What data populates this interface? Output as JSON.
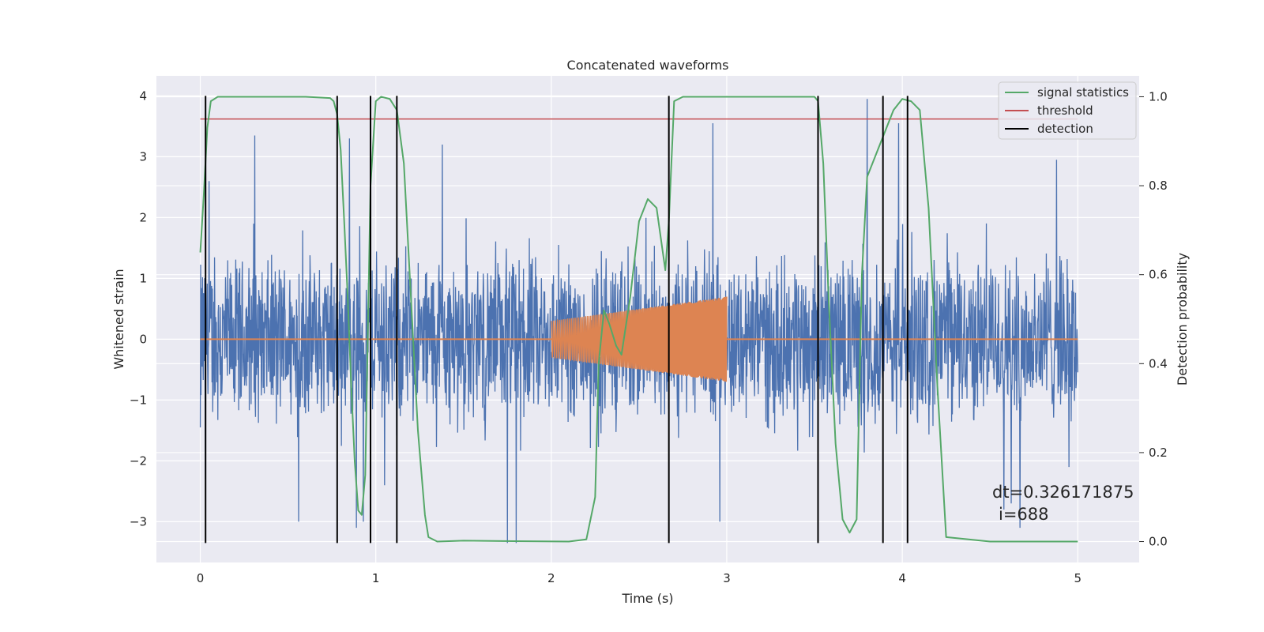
{
  "chart_data": {
    "type": "line",
    "title": "Concatenated waveforms",
    "xlabel": "Time (s)",
    "ylabel": "Whitened strain",
    "y2label": "Detection probability",
    "xlim": [
      -0.25,
      5.35
    ],
    "ylim": [
      -3.67,
      4.33
    ],
    "y2lim": [
      -0.047,
      1.047
    ],
    "x_ticks": [
      0,
      1,
      2,
      3,
      4,
      5
    ],
    "y_ticks": [
      -3,
      -2,
      -1,
      0,
      1,
      2,
      3,
      4
    ],
    "y2_ticks": [
      0.0,
      0.2,
      0.4,
      0.6,
      0.8,
      1.0
    ],
    "grid": true,
    "legend_position": "top-right",
    "annotation": {
      "line1": "dt=0.326171875",
      "line2": "i=688",
      "x": 4.5,
      "y": -2.7
    },
    "series": [
      {
        "name": "",
        "kind": "noise",
        "color": "#4c72b0",
        "x_range": [
          0,
          5
        ],
        "amplitude_core": 1.5,
        "peaks": [
          {
            "x": 0.0,
            "y": -1.45
          },
          {
            "x": 0.03,
            "y": -2.3
          },
          {
            "x": 0.05,
            "y": 2.6
          },
          {
            "x": 0.31,
            "y": 3.35
          },
          {
            "x": 0.56,
            "y": -3.0
          },
          {
            "x": 0.85,
            "y": 3.3
          },
          {
            "x": 0.89,
            "y": -3.1
          },
          {
            "x": 0.93,
            "y": -3.0
          },
          {
            "x": 1.05,
            "y": -2.4
          },
          {
            "x": 1.38,
            "y": 3.2
          },
          {
            "x": 1.75,
            "y": -3.35
          },
          {
            "x": 1.8,
            "y": -3.35
          },
          {
            "x": 2.92,
            "y": 3.55
          },
          {
            "x": 2.96,
            "y": -3.0
          },
          {
            "x": 3.8,
            "y": 3.95
          },
          {
            "x": 3.98,
            "y": 3.55
          },
          {
            "x": 4.58,
            "y": -2.8
          },
          {
            "x": 4.62,
            "y": -2.7
          },
          {
            "x": 4.67,
            "y": -3.1
          },
          {
            "x": 4.88,
            "y": 2.95
          },
          {
            "x": 4.95,
            "y": -2.1
          }
        ]
      },
      {
        "name": "",
        "kind": "chirp",
        "color": "#dd8452",
        "baseline_x": [
          0,
          5
        ],
        "baseline_y": 0,
        "chirp_x_range": [
          2.0,
          3.0
        ],
        "chirp_amplitude_start": 0.3,
        "chirp_amplitude_end": 0.7
      },
      {
        "name": "signal statistics",
        "axis": "right",
        "color": "#55a868",
        "x": [
          0.0,
          0.02,
          0.04,
          0.06,
          0.1,
          0.6,
          0.74,
          0.76,
          0.78,
          0.8,
          0.82,
          0.84,
          0.86,
          0.88,
          0.9,
          0.92,
          0.94,
          0.97,
          1.0,
          1.03,
          1.08,
          1.12,
          1.16,
          1.2,
          1.24,
          1.28,
          1.3,
          1.35,
          1.5,
          2.1,
          2.2,
          2.25,
          2.27,
          2.3,
          2.33,
          2.37,
          2.4,
          2.45,
          2.5,
          2.55,
          2.6,
          2.65,
          2.67,
          2.7,
          2.75,
          3.5,
          3.52,
          3.55,
          3.58,
          3.62,
          3.66,
          3.7,
          3.74,
          3.77,
          3.8,
          3.86,
          3.9,
          3.95,
          4.0,
          4.05,
          4.1,
          4.15,
          4.2,
          4.25,
          4.5,
          5.0
        ],
        "y": [
          0.65,
          0.78,
          0.93,
          0.99,
          1.0,
          1.0,
          0.997,
          0.99,
          0.96,
          0.88,
          0.72,
          0.55,
          0.35,
          0.18,
          0.07,
          0.06,
          0.15,
          0.8,
          0.99,
          1.0,
          0.995,
          0.97,
          0.85,
          0.55,
          0.25,
          0.06,
          0.01,
          0.0,
          0.002,
          0.0,
          0.005,
          0.1,
          0.4,
          0.52,
          0.49,
          0.44,
          0.42,
          0.55,
          0.72,
          0.77,
          0.75,
          0.61,
          0.72,
          0.99,
          1.0,
          1.0,
          0.99,
          0.85,
          0.55,
          0.22,
          0.05,
          0.02,
          0.05,
          0.6,
          0.82,
          0.88,
          0.92,
          0.97,
          0.995,
          0.99,
          0.97,
          0.75,
          0.35,
          0.01,
          0.0,
          0.0
        ]
      },
      {
        "name": "threshold",
        "axis": "right",
        "color": "#c44e52",
        "x": [
          0,
          5
        ],
        "y": [
          0.95,
          0.95
        ]
      },
      {
        "name": "detection",
        "kind": "vertical_lines",
        "color": "#000000",
        "x": [
          0.03,
          0.78,
          0.97,
          1.12,
          2.67,
          3.52,
          3.89,
          4.03
        ],
        "y_from": -3.35,
        "y_to": 4.0
      }
    ]
  }
}
